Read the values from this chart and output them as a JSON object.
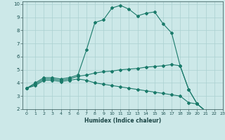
{
  "xlabel": "Humidex (Indice chaleur)",
  "bg_color": "#cce8e8",
  "grid_color": "#aad0d0",
  "line_color": "#1a7a6a",
  "xlim": [
    -0.5,
    23
  ],
  "ylim": [
    2,
    10.2
  ],
  "xticks": [
    0,
    1,
    2,
    3,
    4,
    5,
    6,
    7,
    8,
    9,
    10,
    11,
    12,
    13,
    14,
    15,
    16,
    17,
    18,
    19,
    20,
    21,
    22,
    23
  ],
  "yticks": [
    2,
    3,
    4,
    5,
    6,
    7,
    8,
    9,
    10
  ],
  "series1_x": [
    0,
    1,
    2,
    3,
    4,
    5,
    6,
    7,
    8,
    9,
    10,
    11,
    12,
    13,
    14,
    15,
    16,
    17,
    18,
    19,
    20,
    21,
    22,
    23
  ],
  "series1_y": [
    3.6,
    4.0,
    4.4,
    4.4,
    4.3,
    4.4,
    4.6,
    6.5,
    8.6,
    8.8,
    9.7,
    9.9,
    9.6,
    9.1,
    9.3,
    9.4,
    8.5,
    7.8,
    5.3,
    3.5,
    2.4,
    1.85,
    1.85,
    1.85
  ],
  "series2_x": [
    0,
    1,
    2,
    3,
    4,
    5,
    6,
    7,
    8,
    9,
    10,
    11,
    12,
    13,
    14,
    15,
    16,
    17,
    18,
    19,
    20,
    21,
    22,
    23
  ],
  "series2_y": [
    3.6,
    3.9,
    4.3,
    4.3,
    4.2,
    4.3,
    4.5,
    4.6,
    4.75,
    4.85,
    4.9,
    5.0,
    5.05,
    5.1,
    5.2,
    5.25,
    5.3,
    5.4,
    5.3,
    3.5,
    2.4,
    1.85,
    1.85,
    1.85
  ],
  "series3_x": [
    0,
    1,
    2,
    3,
    4,
    5,
    6,
    7,
    8,
    9,
    10,
    11,
    12,
    13,
    14,
    15,
    16,
    17,
    18,
    19,
    20,
    21,
    22,
    23
  ],
  "series3_y": [
    3.6,
    3.8,
    4.2,
    4.2,
    4.1,
    4.2,
    4.3,
    4.2,
    4.0,
    3.9,
    3.8,
    3.7,
    3.6,
    3.5,
    3.4,
    3.3,
    3.2,
    3.1,
    3.0,
    2.5,
    2.4,
    1.85,
    1.85,
    1.85
  ]
}
